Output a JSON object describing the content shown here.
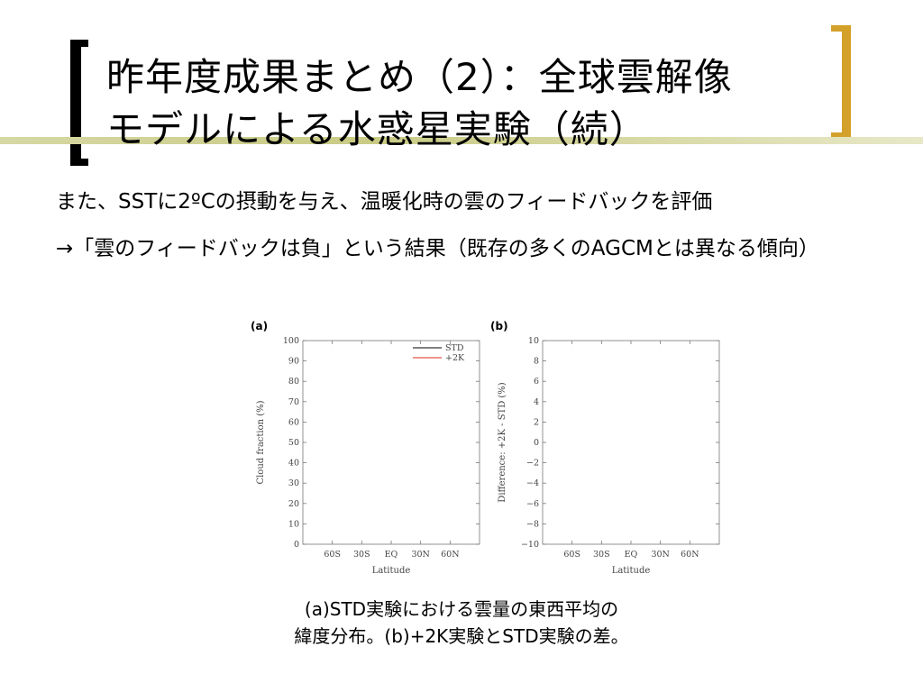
{
  "title": {
    "line1": "昨年度成果まとめ（2）：全球雲解像",
    "line2": "モデルによる水惑星実験（続）"
  },
  "bullets": [
    "また、SSTに2ºCの摂動を与え、温暖化時の雲のフィードバックを評価",
    "→「雲のフィードバックは負」という結果（既存の多くのAGCMとは異なる傾向）"
  ],
  "caption": {
    "line1": "(a)STD実験における雲量の東西平均の",
    "line2": "緯度分布。(b)+2K実験とSTD実験の差。"
  },
  "colors": {
    "accent_bracket": "#d3a12a",
    "accent_bar": "#c9cb85",
    "std_line": "#000000",
    "plus2k_line": "#e0281f"
  },
  "chart_data": [
    {
      "type": "line",
      "panel_label": "(a)",
      "title": "",
      "xlabel": "Latitude",
      "ylabel": "Cloud fraction (%)",
      "xlim": [
        -90,
        90
      ],
      "ylim": [
        0,
        100
      ],
      "x_ticks": [
        {
          "value": -60,
          "label": "60S"
        },
        {
          "value": -30,
          "label": "30S"
        },
        {
          "value": 0,
          "label": "EQ"
        },
        {
          "value": 30,
          "label": "30N"
        },
        {
          "value": 60,
          "label": "60N"
        }
      ],
      "y_ticks": [
        0,
        10,
        20,
        30,
        40,
        50,
        60,
        70,
        80,
        90,
        100
      ],
      "legend": {
        "placement": "top-right"
      },
      "series": [
        {
          "name": "STD",
          "color": "#000000"
        },
        {
          "name": "+2K",
          "color": "#e0281f"
        }
      ]
    },
    {
      "type": "line",
      "panel_label": "(b)",
      "title": "",
      "xlabel": "Latitude",
      "ylabel": "Difference: +2K - STD (%)",
      "xlim": [
        -90,
        90
      ],
      "ylim": [
        -10,
        10
      ],
      "x_ticks": [
        {
          "value": -60,
          "label": "60S"
        },
        {
          "value": -30,
          "label": "30S"
        },
        {
          "value": 0,
          "label": "EQ"
        },
        {
          "value": 30,
          "label": "30N"
        },
        {
          "value": 60,
          "label": "60N"
        }
      ],
      "y_ticks": [
        -10,
        -8,
        -6,
        -4,
        -2,
        0,
        2,
        4,
        6,
        8,
        10
      ],
      "series": [
        {
          "color": "#000000"
        }
      ]
    }
  ]
}
